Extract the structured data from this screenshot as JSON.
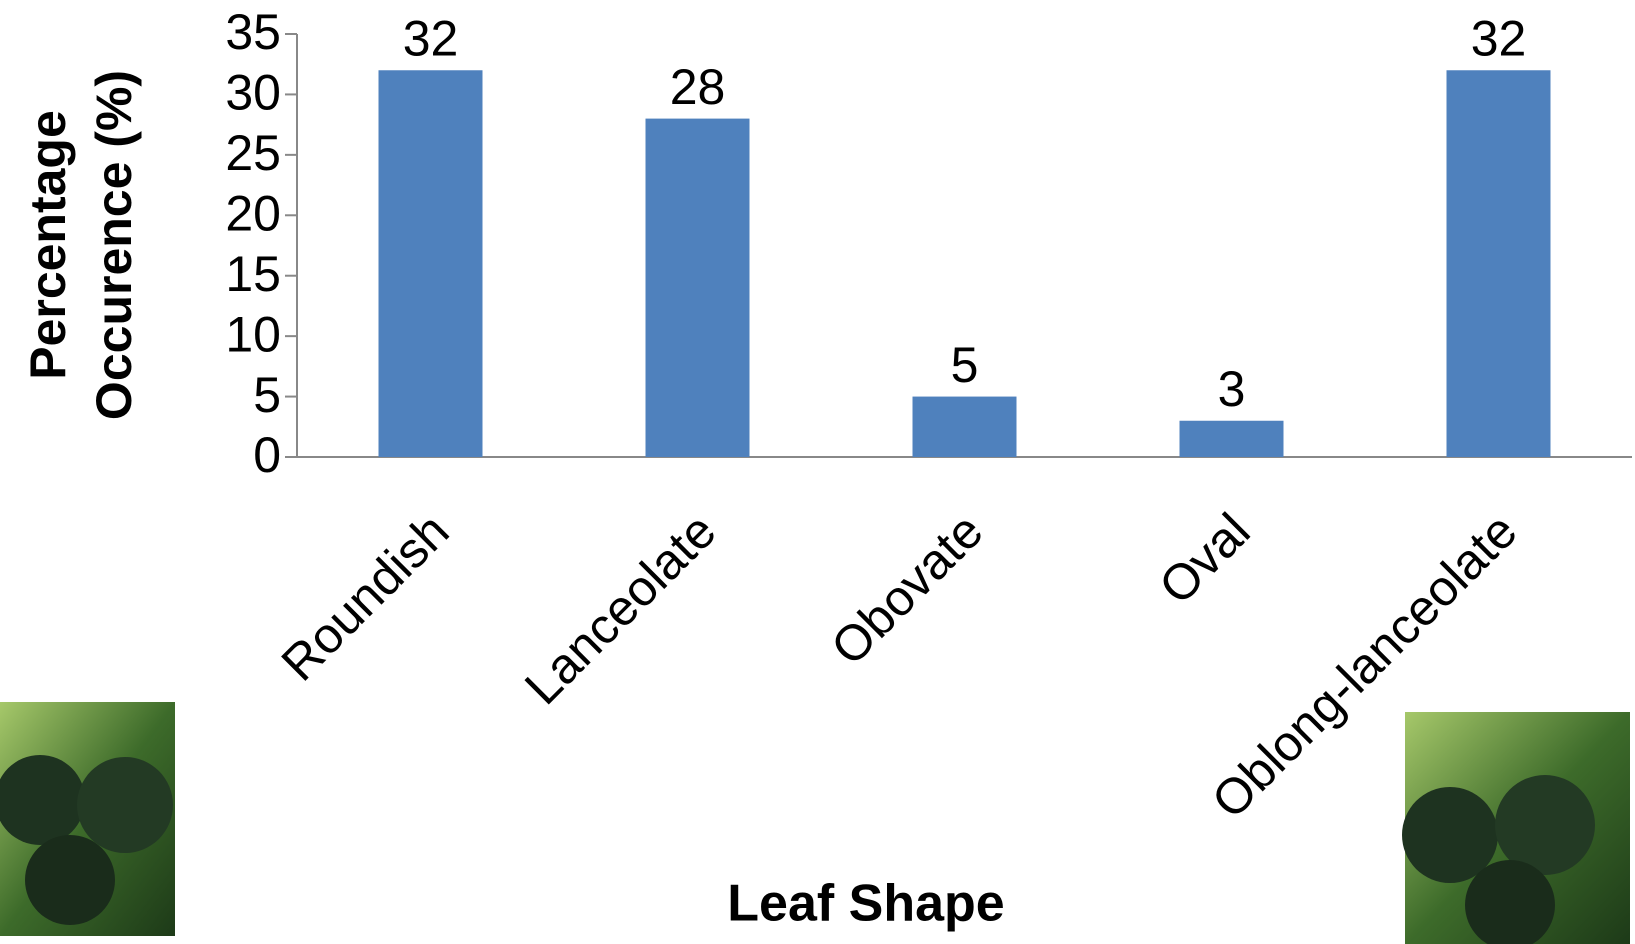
{
  "chart_data": {
    "type": "bar",
    "y_label": "Percentage Occurence (%)",
    "x_label": "Leaf Shape",
    "categories": [
      "Roundish",
      "Lanceolate",
      "Obovate",
      "Oval",
      "Oblong-lanceolate"
    ],
    "values": [
      32,
      28,
      5,
      3,
      32
    ],
    "color": "#4f81bd",
    "ylim": [
      0,
      35
    ],
    "yticks": [
      0,
      5,
      10,
      15,
      20,
      25,
      30,
      35
    ]
  }
}
